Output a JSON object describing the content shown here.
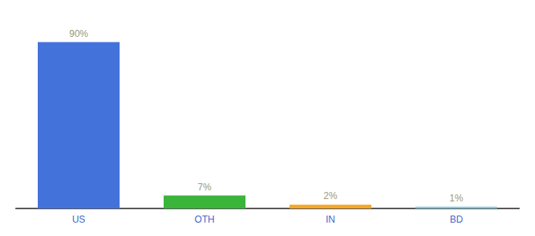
{
  "chart_data": {
    "type": "bar",
    "categories": [
      "US",
      "OTH",
      "IN",
      "BD"
    ],
    "values": [
      90,
      7,
      2,
      1
    ],
    "value_labels": [
      "90%",
      "7%",
      "2%",
      "1%"
    ],
    "data_labels": true,
    "colors": [
      "#4472db",
      "#3ab53a",
      "#f5a623",
      "#7ec8e3"
    ],
    "ylim": [
      0,
      100
    ],
    "grid": false,
    "tick_labels": "x"
  }
}
